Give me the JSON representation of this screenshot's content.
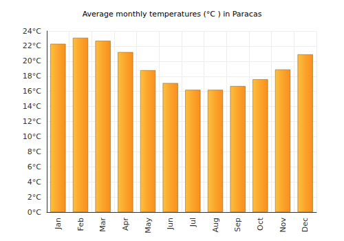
{
  "chart_data": {
    "type": "bar",
    "title": "Average monthly temperatures (°C ) in Paracas",
    "categories": [
      "Jan",
      "Feb",
      "Mar",
      "Apr",
      "May",
      "Jun",
      "Jul",
      "Aug",
      "Sep",
      "Oct",
      "Nov",
      "Dec"
    ],
    "values": [
      22.3,
      23.1,
      22.7,
      21.2,
      18.8,
      17.1,
      16.2,
      16.2,
      16.7,
      17.6,
      18.9,
      20.9
    ],
    "color": "#fba42b",
    "ylim": [
      0,
      24
    ],
    "yticks": [
      {
        "value": 0,
        "label": "0°C"
      },
      {
        "value": 2,
        "label": "2°C"
      },
      {
        "value": 4,
        "label": "4°C"
      },
      {
        "value": 6,
        "label": "6°C"
      },
      {
        "value": 8,
        "label": "8°C"
      },
      {
        "value": 10,
        "label": "10°C"
      },
      {
        "value": 12,
        "label": "12°C"
      },
      {
        "value": 14,
        "label": "14°C"
      },
      {
        "value": 16,
        "label": "16°C"
      },
      {
        "value": 18,
        "label": "18°C"
      },
      {
        "value": 20,
        "label": "20°C"
      },
      {
        "value": 22,
        "label": "22°C"
      },
      {
        "value": 24,
        "label": "24°C"
      }
    ],
    "grid": true
  }
}
